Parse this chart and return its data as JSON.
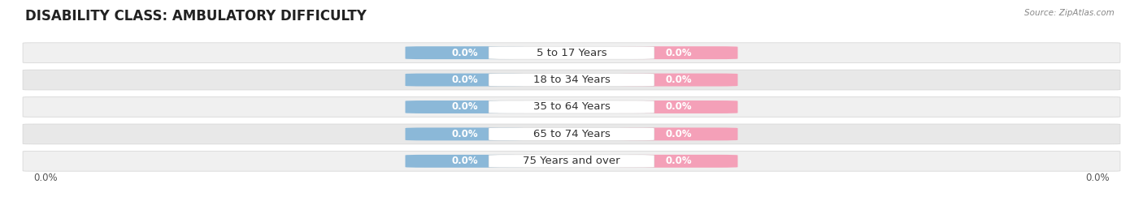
{
  "title": "DISABILITY CLASS: AMBULATORY DIFFICULTY",
  "source": "Source: ZipAtlas.com",
  "categories": [
    "5 to 17 Years",
    "18 to 34 Years",
    "35 to 64 Years",
    "65 to 74 Years",
    "75 Years and over"
  ],
  "male_values": [
    0.0,
    0.0,
    0.0,
    0.0,
    0.0
  ],
  "female_values": [
    0.0,
    0.0,
    0.0,
    0.0,
    0.0
  ],
  "male_color": "#8bb8d8",
  "female_color": "#f4a0b8",
  "male_label_color": "#ffffff",
  "female_label_color": "#ffffff",
  "title_fontsize": 12,
  "title_color": "#222222",
  "category_fontsize": 9.5,
  "value_fontsize": 8.5,
  "legend_male_color": "#8bb8d8",
  "legend_female_color": "#f4a0b8",
  "x_tick_label_left": "0.0%",
  "x_tick_label_right": "0.0%",
  "background_color": "#ffffff",
  "row_bg_even": "#f0f0f0",
  "row_bg_odd": "#e8e8e8",
  "row_border_color": "#d8d8d8"
}
